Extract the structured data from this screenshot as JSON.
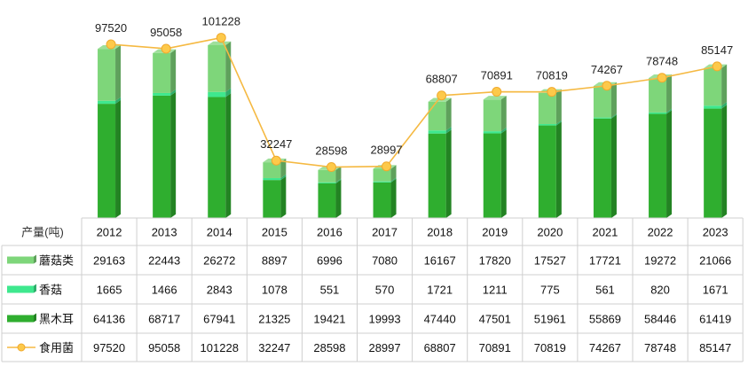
{
  "chart_data": {
    "type": "bar",
    "stacked": true,
    "categories": [
      "2012",
      "2013",
      "2014",
      "2015",
      "2016",
      "2017",
      "2018",
      "2019",
      "2020",
      "2021",
      "2022",
      "2023"
    ],
    "table_header_label": "产量(吨)",
    "series": [
      {
        "name": "蘑菇类",
        "kind": "bar",
        "color": "#7ed67a",
        "values": [
          29163,
          22443,
          26272,
          8897,
          6996,
          7080,
          16167,
          17820,
          17527,
          17721,
          19272,
          21066
        ]
      },
      {
        "name": "香菇",
        "kind": "bar",
        "color": "#3ee88e",
        "values": [
          1665,
          1466,
          2843,
          1078,
          551,
          570,
          1721,
          1211,
          775,
          561,
          820,
          1671
        ]
      },
      {
        "name": "黑木耳",
        "kind": "bar",
        "color": "#2fae2f",
        "values": [
          64136,
          68717,
          67941,
          21325,
          19421,
          19993,
          47440,
          47501,
          51961,
          55869,
          58446,
          61419
        ]
      },
      {
        "name": "食用菌",
        "kind": "line",
        "color": "#f5b942",
        "values": [
          97520,
          95058,
          101228,
          32247,
          28598,
          28997,
          68807,
          70891,
          70819,
          74267,
          78748,
          85147
        ]
      }
    ],
    "ylim": [
      0,
      104000
    ],
    "legend": "table-left",
    "grid": false
  }
}
